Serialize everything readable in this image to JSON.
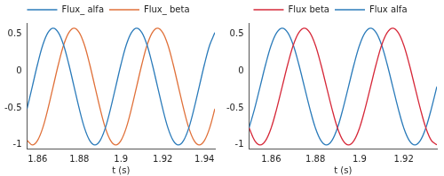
{
  "chart_data": [
    {
      "type": "line",
      "x_label": "t (s)",
      "x": [
        1.855,
        1.8575,
        1.86,
        1.8625,
        1.865,
        1.8675,
        1.87,
        1.8725,
        1.875,
        1.8775,
        1.88,
        1.8825,
        1.885,
        1.8875,
        1.89,
        1.8925,
        1.895,
        1.8975,
        1.9,
        1.9025,
        1.905,
        1.9075,
        1.91,
        1.9125,
        1.915,
        1.9175,
        1.92,
        1.9225,
        1.925,
        1.9275,
        1.93,
        1.9325,
        1.935,
        1.9375,
        1.94,
        1.9425,
        1.945
      ],
      "series": [
        {
          "name": "Flux_ alfa",
          "color": "#2b7bba",
          "values": [
            -0.51,
            -0.21,
            0.09,
            0.35,
            0.52,
            0.58,
            0.52,
            0.35,
            0.09,
            -0.21,
            -0.51,
            -0.77,
            -0.94,
            -1.0,
            -0.94,
            -0.77,
            -0.51,
            -0.21,
            0.09,
            0.35,
            0.52,
            0.58,
            0.52,
            0.35,
            0.09,
            -0.21,
            -0.51,
            -0.77,
            -0.94,
            -1.0,
            -0.94,
            -0.77,
            -0.51,
            -0.21,
            0.09,
            0.35,
            0.52
          ]
        },
        {
          "name": "Flux_ beta",
          "color": "#e0713a",
          "values": [
            -0.94,
            -1.0,
            -0.94,
            -0.77,
            -0.51,
            -0.21,
            0.09,
            0.35,
            0.52,
            0.58,
            0.52,
            0.35,
            0.09,
            -0.21,
            -0.51,
            -0.77,
            -0.94,
            -1.0,
            -0.94,
            -0.77,
            -0.51,
            -0.21,
            0.09,
            0.35,
            0.52,
            0.58,
            0.52,
            0.35,
            0.09,
            -0.21,
            -0.51,
            -0.77,
            -0.94,
            -1.0,
            -0.94,
            -0.77,
            -0.51
          ]
        }
      ],
      "xlim": [
        1.855,
        1.945
      ],
      "xticks": [
        1.86,
        1.88,
        1.9,
        1.92,
        1.94
      ],
      "ylim": [
        -1.05,
        0.65
      ],
      "yticks": [
        -1,
        -0.5,
        0,
        0.5
      ],
      "grid": false,
      "legend": "top"
    },
    {
      "type": "line",
      "x_label": "t (s)",
      "x": [
        1.85,
        1.8525,
        1.855,
        1.8575,
        1.86,
        1.8625,
        1.865,
        1.8675,
        1.87,
        1.8725,
        1.875,
        1.8775,
        1.88,
        1.8825,
        1.885,
        1.8875,
        1.89,
        1.8925,
        1.895,
        1.8975,
        1.9,
        1.9025,
        1.905,
        1.9075,
        1.91,
        1.9125,
        1.915,
        1.9175,
        1.92,
        1.9225,
        1.925,
        1.9275,
        1.93,
        1.9325,
        1.935
      ],
      "series": [
        {
          "name": "Flux beta",
          "color": "#d62839",
          "values": [
            -0.77,
            -0.94,
            -1.0,
            -0.94,
            -0.77,
            -0.51,
            -0.21,
            0.09,
            0.35,
            0.52,
            0.58,
            0.52,
            0.35,
            0.09,
            -0.21,
            -0.51,
            -0.77,
            -0.94,
            -1.0,
            -0.94,
            -0.77,
            -0.51,
            -0.21,
            0.09,
            0.35,
            0.52,
            0.58,
            0.52,
            0.35,
            0.09,
            -0.21,
            -0.51,
            -0.77,
            -0.94,
            -1.0
          ]
        },
        {
          "name": "Flux alfa",
          "color": "#2b7bba",
          "values": [
            -0.77,
            -0.51,
            -0.21,
            0.09,
            0.35,
            0.52,
            0.58,
            0.52,
            0.35,
            0.09,
            -0.21,
            -0.51,
            -0.77,
            -0.94,
            -1.0,
            -0.94,
            -0.77,
            -0.51,
            -0.21,
            0.09,
            0.35,
            0.52,
            0.58,
            0.52,
            0.35,
            0.09,
            -0.21,
            -0.51,
            -0.77,
            -0.94,
            -1.0,
            -0.94,
            -0.77,
            -0.51,
            -0.21
          ]
        }
      ],
      "xlim": [
        1.85,
        1.935
      ],
      "xticks": [
        1.86,
        1.88,
        1.9,
        1.92
      ],
      "ylim": [
        -1.05,
        0.65
      ],
      "yticks": [
        -1,
        -0.5,
        0,
        0.5
      ],
      "grid": false,
      "legend": "top"
    }
  ]
}
